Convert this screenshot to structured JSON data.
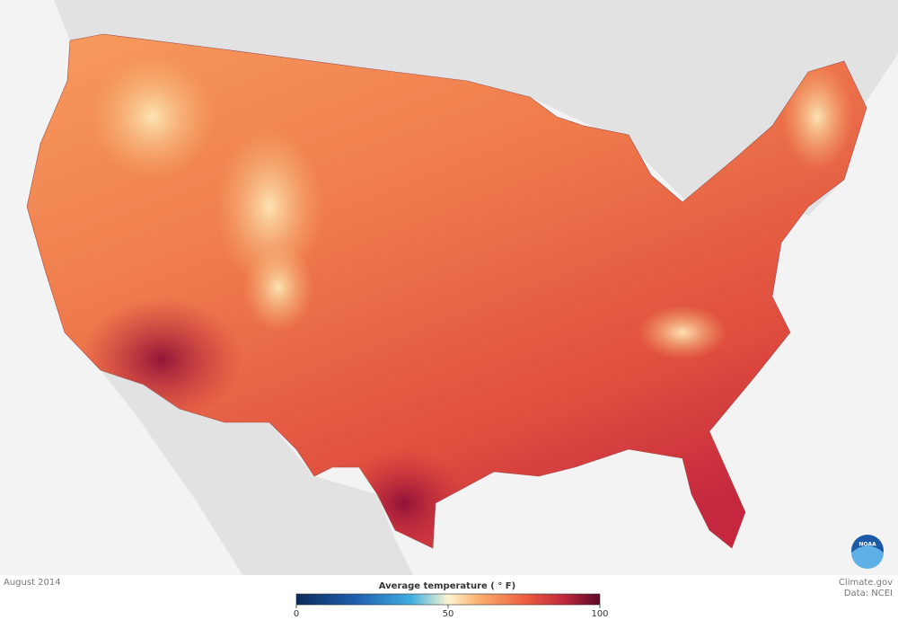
{
  "date": "August 2014",
  "legend": {
    "title": "Average temperature ( ° F)",
    "range": [
      0,
      100
    ],
    "ticks": [
      0,
      50,
      100
    ]
  },
  "credits": {
    "site": "Climate.gov",
    "source": "Data: NCEI"
  },
  "logo": "NOAA"
}
